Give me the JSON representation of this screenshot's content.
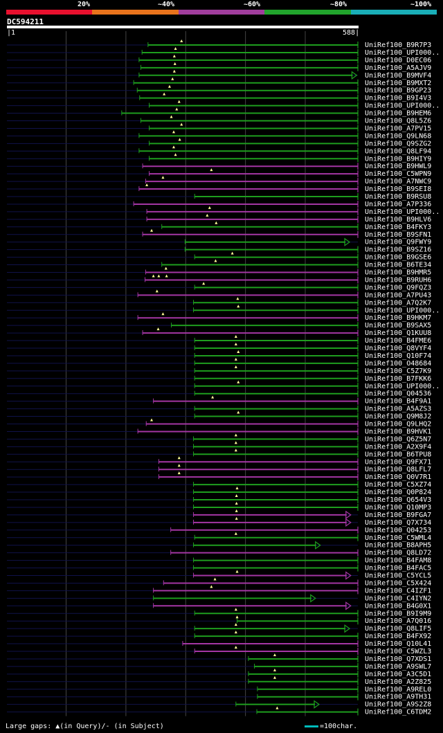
{
  "legend": {
    "labels": [
      "20%",
      "~40%",
      "~60%",
      "~80%",
      "~100%"
    ],
    "colors": [
      "#e8102e",
      "#e8731c",
      "#a03d9c",
      "#21a42c",
      "#1aaeb8"
    ]
  },
  "query": {
    "id": "DC594211",
    "start": "1",
    "end": "588",
    "length": 588
  },
  "colors": {
    "green": "#1e9e1e",
    "purple": "#a436a4",
    "grid": "#444444",
    "track": "#10124a",
    "marker": "#ffff99"
  },
  "hits": [
    {
      "label": "UniRef100_B9R7P3",
      "color": "green",
      "q": [
        237,
        588
      ],
      "arrow": "line",
      "m": [
        293
      ]
    },
    {
      "label": "UniRef100_UPI000..",
      "color": "green",
      "q": [
        227,
        588
      ],
      "arrow": "line",
      "m": [
        283
      ]
    },
    {
      "label": "UniRef100_D0EC06",
      "color": "green",
      "q": [
        222,
        588
      ],
      "arrow": "line",
      "m": [
        281
      ]
    },
    {
      "label": "UniRef100_A5AJV9",
      "color": "green",
      "q": [
        225,
        588
      ],
      "arrow": "line",
      "m": [
        282
      ]
    },
    {
      "label": "UniRef100_B9MVF4",
      "color": "green",
      "q": [
        222,
        585
      ],
      "arrow": "tri",
      "m": [
        281
      ]
    },
    {
      "label": "UniRef100_B9MXT2",
      "color": "green",
      "q": [
        213,
        588
      ],
      "arrow": "line",
      "m": [
        278
      ]
    },
    {
      "label": "UniRef100_B9GP23",
      "color": "green",
      "q": [
        219,
        588
      ],
      "arrow": "line",
      "m": [
        273
      ]
    },
    {
      "label": "UniRef100_B9I4V3",
      "color": "green",
      "q": [
        223,
        588
      ],
      "arrow": "line",
      "m": [
        264
      ]
    },
    {
      "label": "UniRef100_UPI000..",
      "color": "green",
      "q": [
        239,
        588
      ],
      "arrow": "line",
      "m": [
        289
      ]
    },
    {
      "label": "UniRef100_B9HEM6",
      "color": "green",
      "q": [
        193,
        588
      ],
      "arrow": "line",
      "m": [
        285
      ]
    },
    {
      "label": "UniRef100_Q8L5Z6",
      "color": "green",
      "q": [
        225,
        588
      ],
      "arrow": "line",
      "m": [
        276
      ]
    },
    {
      "label": "UniRef100_A7PV15",
      "color": "green",
      "q": [
        239,
        588
      ],
      "arrow": "line",
      "m": [
        293
      ]
    },
    {
      "label": "UniRef100_Q9LN68",
      "color": "green",
      "q": [
        222,
        588
      ],
      "arrow": "line",
      "m": [
        280
      ]
    },
    {
      "label": "UniRef100_Q9SZG2",
      "color": "green",
      "q": [
        239,
        588
      ],
      "arrow": "line",
      "m": [
        290
      ]
    },
    {
      "label": "UniRef100_Q8LF94",
      "color": "green",
      "q": [
        222,
        588
      ],
      "arrow": "line",
      "m": [
        280
      ]
    },
    {
      "label": "UniRef100_B9HIY9",
      "color": "green",
      "q": [
        239,
        588
      ],
      "arrow": "line",
      "m": [
        283
      ]
    },
    {
      "label": "UniRef100_B9HWL9",
      "color": "purple",
      "q": [
        228,
        588
      ],
      "arrow": "line",
      "m": []
    },
    {
      "label": "UniRef100_C5WPN9",
      "color": "purple",
      "q": [
        239,
        588
      ],
      "arrow": "line",
      "m": [
        343
      ]
    },
    {
      "label": "UniRef100_A7NWC9",
      "color": "purple",
      "q": [
        233,
        588
      ],
      "arrow": "line",
      "m": [
        262
      ]
    },
    {
      "label": "UniRef100_B9SEI8",
      "color": "purple",
      "q": [
        222,
        588
      ],
      "arrow": "line",
      "m": [
        235
      ]
    },
    {
      "label": "UniRef100_B9RSU8",
      "color": "green",
      "q": [
        315,
        588
      ],
      "arrow": "line",
      "m": []
    },
    {
      "label": "UniRef100_A7P336",
      "color": "purple",
      "q": [
        213,
        588
      ],
      "arrow": "line",
      "m": []
    },
    {
      "label": "UniRef100_UPI000..",
      "color": "purple",
      "q": [
        235,
        588
      ],
      "arrow": "line",
      "m": [
        340
      ]
    },
    {
      "label": "UniRef100_B9HLV6",
      "color": "purple",
      "q": [
        235,
        588
      ],
      "arrow": "line",
      "m": [
        336
      ]
    },
    {
      "label": "UniRef100_B4FKY3",
      "color": "green",
      "q": [
        260,
        588
      ],
      "arrow": "line",
      "m": [
        351
      ]
    },
    {
      "label": "UniRef100_B9SFN1",
      "color": "purple",
      "q": [
        228,
        588
      ],
      "arrow": "line",
      "m": [
        243
      ]
    },
    {
      "label": "UniRef100_Q9FWY9",
      "color": "green",
      "q": [
        299,
        573
      ],
      "arrow": "tri",
      "m": []
    },
    {
      "label": "UniRef100_B9SZ16",
      "color": "green",
      "q": [
        299,
        588
      ],
      "arrow": "line",
      "m": []
    },
    {
      "label": "UniRef100_B9GSE6",
      "color": "green",
      "q": [
        315,
        588
      ],
      "arrow": "line",
      "m": [
        378
      ]
    },
    {
      "label": "UniRef100_B6TE34",
      "color": "green",
      "q": [
        260,
        588
      ],
      "arrow": "line",
      "m": [
        350
      ]
    },
    {
      "label": "UniRef100_B9HMR5",
      "color": "purple",
      "q": [
        233,
        588
      ],
      "arrow": "line",
      "m": [
        267
      ]
    },
    {
      "label": "UniRef100_B9RUH6",
      "color": "purple",
      "q": [
        232,
        588
      ],
      "arrow": "line",
      "m": [
        246,
        255,
        268
      ]
    },
    {
      "label": "UniRef100_Q9FQZ3",
      "color": "green",
      "q": [
        315,
        588
      ],
      "arrow": "line",
      "m": [
        330
      ]
    },
    {
      "label": "UniRef100_A7PU43",
      "color": "purple",
      "q": [
        220,
        588
      ],
      "arrow": "line",
      "m": [
        252
      ]
    },
    {
      "label": "UniRef100_A7Q2K7",
      "color": "green",
      "q": [
        313,
        588
      ],
      "arrow": "line",
      "m": [
        387
      ]
    },
    {
      "label": "UniRef100_UPI000..",
      "color": "green",
      "q": [
        313,
        588
      ],
      "arrow": "line",
      "m": [
        388
      ]
    },
    {
      "label": "UniRef100_B9HKM7",
      "color": "purple",
      "q": [
        220,
        588
      ],
      "arrow": "line",
      "m": [
        262
      ]
    },
    {
      "label": "UniRef100_B9SAX5",
      "color": "green",
      "q": [
        276,
        588
      ],
      "arrow": "line",
      "m": []
    },
    {
      "label": "UniRef100_Q1KUU8",
      "color": "purple",
      "q": [
        228,
        588
      ],
      "arrow": "line",
      "m": [
        254
      ]
    },
    {
      "label": "UniRef100_B4FME6",
      "color": "green",
      "q": [
        315,
        588
      ],
      "arrow": "line",
      "m": [
        384
      ]
    },
    {
      "label": "UniRef100_Q8VYF4",
      "color": "green",
      "q": [
        315,
        588
      ],
      "arrow": "line",
      "m": [
        384
      ]
    },
    {
      "label": "UniRef100_Q10F74",
      "color": "green",
      "q": [
        315,
        588
      ],
      "arrow": "line",
      "m": [
        388
      ]
    },
    {
      "label": "UniRef100_O48684",
      "color": "green",
      "q": [
        315,
        588
      ],
      "arrow": "line",
      "m": [
        384
      ]
    },
    {
      "label": "UniRef100_C5Z7K9",
      "color": "green",
      "q": [
        315,
        588
      ],
      "arrow": "line",
      "m": [
        384
      ]
    },
    {
      "label": "UniRef100_B7FKK6",
      "color": "green",
      "q": [
        315,
        588
      ],
      "arrow": "line",
      "m": []
    },
    {
      "label": "UniRef100_UPI000..",
      "color": "green",
      "q": [
        315,
        588
      ],
      "arrow": "line",
      "m": [
        388
      ]
    },
    {
      "label": "UniRef100_Q04536",
      "color": "green",
      "q": [
        315,
        588
      ],
      "arrow": "line",
      "m": []
    },
    {
      "label": "UniRef100_B4F9A1",
      "color": "purple",
      "q": [
        246,
        588
      ],
      "arrow": "line",
      "m": [
        345
      ]
    },
    {
      "label": "UniRef100_A5AZS3",
      "color": "green",
      "q": [
        315,
        588
      ],
      "arrow": "line",
      "m": []
    },
    {
      "label": "UniRef100_Q9M8J2",
      "color": "green",
      "q": [
        315,
        588
      ],
      "arrow": "line",
      "m": [
        388
      ]
    },
    {
      "label": "UniRef100_Q9LHQ2",
      "color": "purple",
      "q": [
        234,
        588
      ],
      "arrow": "line",
      "m": [
        243
      ]
    },
    {
      "label": "UniRef100_B9HVK1",
      "color": "purple",
      "q": [
        220,
        588
      ],
      "arrow": "line",
      "m": []
    },
    {
      "label": "UniRef100_Q6Z5N7",
      "color": "green",
      "q": [
        313,
        588
      ],
      "arrow": "line",
      "m": [
        384
      ]
    },
    {
      "label": "UniRef100_A2X9F4",
      "color": "green",
      "q": [
        313,
        588
      ],
      "arrow": "line",
      "m": [
        384
      ]
    },
    {
      "label": "UniRef100_B6TPU8",
      "color": "green",
      "q": [
        313,
        588
      ],
      "arrow": "line",
      "m": [
        384
      ]
    },
    {
      "label": "UniRef100_Q9FX71",
      "color": "purple",
      "q": [
        255,
        588
      ],
      "arrow": "line",
      "m": [
        289
      ]
    },
    {
      "label": "UniRef100_Q8LFL7",
      "color": "purple",
      "q": [
        255,
        588
      ],
      "arrow": "line",
      "m": [
        289
      ]
    },
    {
      "label": "UniRef100_Q0V7R1",
      "color": "purple",
      "q": [
        255,
        588
      ],
      "arrow": "line",
      "m": [
        289
      ]
    },
    {
      "label": "UniRef100_C5XZ74",
      "color": "green",
      "q": [
        313,
        588
      ],
      "arrow": "line",
      "m": []
    },
    {
      "label": "UniRef100_Q0P824",
      "color": "green",
      "q": [
        313,
        588
      ],
      "arrow": "line",
      "m": [
        386
      ]
    },
    {
      "label": "UniRef100_Q654V3",
      "color": "green",
      "q": [
        313,
        588
      ],
      "arrow": "line",
      "m": [
        385
      ]
    },
    {
      "label": "UniRef100_Q10MP3",
      "color": "green",
      "q": [
        313,
        588
      ],
      "arrow": "line",
      "m": [
        385
      ]
    },
    {
      "label": "UniRef100_B9FGA7",
      "color": "purple",
      "q": [
        313,
        575
      ],
      "arrow": "tri",
      "m": [
        385
      ]
    },
    {
      "label": "UniRef100_Q7X734",
      "color": "purple",
      "q": [
        313,
        575
      ],
      "arrow": "tri",
      "m": [
        385
      ]
    },
    {
      "label": "UniRef100_Q04253",
      "color": "purple",
      "q": [
        275,
        588
      ],
      "arrow": "line",
      "m": []
    },
    {
      "label": "UniRef100_C5WML4",
      "color": "green",
      "q": [
        315,
        588
      ],
      "arrow": "line",
      "m": [
        384
      ]
    },
    {
      "label": "UniRef100_B8APH5",
      "color": "green",
      "q": [
        313,
        524
      ],
      "arrow": "tri",
      "m": []
    },
    {
      "label": "UniRef100_Q8LD72",
      "color": "purple",
      "q": [
        275,
        588
      ],
      "arrow": "line",
      "m": []
    },
    {
      "label": "UniRef100_B4FAM8",
      "color": "green",
      "q": [
        313,
        588
      ],
      "arrow": "line",
      "m": []
    },
    {
      "label": "UniRef100_B4FAC5",
      "color": "green",
      "q": [
        313,
        588
      ],
      "arrow": "line",
      "m": []
    },
    {
      "label": "UniRef100_C5YCL5",
      "color": "purple",
      "q": [
        313,
        575
      ],
      "arrow": "tri",
      "m": [
        386
      ]
    },
    {
      "label": "UniRef100_C5X424",
      "color": "purple",
      "q": [
        263,
        588
      ],
      "arrow": "line",
      "m": [
        349
      ]
    },
    {
      "label": "UniRef100_C4IZF1",
      "color": "purple",
      "q": [
        246,
        588
      ],
      "arrow": "line",
      "m": [
        343
      ]
    },
    {
      "label": "UniRef100_C4IYN2",
      "color": "green",
      "q": [
        246,
        516
      ],
      "arrow": "tri",
      "m": []
    },
    {
      "label": "UniRef100_B4G0X1",
      "color": "purple",
      "q": [
        246,
        575
      ],
      "arrow": "tri",
      "m": []
    },
    {
      "label": "UniRef100_B9I9M9",
      "color": "green",
      "q": [
        315,
        588
      ],
      "arrow": "line",
      "m": [
        384
      ]
    },
    {
      "label": "UniRef100_A7Q016",
      "color": "green",
      "q": [
        386,
        588
      ],
      "arrow": "line",
      "m": [
        386
      ]
    },
    {
      "label": "UniRef100_Q8LIF5",
      "color": "green",
      "q": [
        315,
        573
      ],
      "arrow": "tri",
      "m": [
        384
      ]
    },
    {
      "label": "UniRef100_B4FX92",
      "color": "green",
      "q": [
        315,
        588
      ],
      "arrow": "line",
      "m": [
        384
      ]
    },
    {
      "label": "UniRef100_Q10L41",
      "color": "purple",
      "q": [
        295,
        588
      ],
      "arrow": "line",
      "m": []
    },
    {
      "label": "UniRef100_C5WZL3",
      "color": "purple",
      "q": [
        315,
        588
      ],
      "arrow": "line",
      "m": [
        384
      ]
    },
    {
      "label": "UniRef100_Q7XDS1",
      "color": "green",
      "q": [
        405,
        588
      ],
      "arrow": "line",
      "m": [
        449
      ]
    },
    {
      "label": "UniRef100_A9SWL7",
      "color": "green",
      "q": [
        415,
        588
      ],
      "arrow": "line",
      "m": []
    },
    {
      "label": "UniRef100_A3C5D1",
      "color": "green",
      "q": [
        405,
        588
      ],
      "arrow": "line",
      "m": [
        449
      ]
    },
    {
      "label": "UniRef100_A2Z825",
      "color": "green",
      "q": [
        405,
        588
      ],
      "arrow": "line",
      "m": [
        449
      ]
    },
    {
      "label": "UniRef100_A9REL0",
      "color": "green",
      "q": [
        420,
        588
      ],
      "arrow": "line",
      "m": []
    },
    {
      "label": "UniRef100_A9TH31",
      "color": "green",
      "q": [
        420,
        588
      ],
      "arrow": "line",
      "m": []
    },
    {
      "label": "UniRef100_A9S2Z8",
      "color": "green",
      "q": [
        384,
        522
      ],
      "arrow": "tri",
      "m": []
    },
    {
      "label": "UniRef100_C6TDM2",
      "color": "green",
      "q": [
        419,
        588
      ],
      "arrow": "line",
      "m": [
        453
      ]
    }
  ],
  "footer": {
    "note": "Large gaps: ▲(in Query)/- (in Subject)",
    "scale": "=100char."
  }
}
